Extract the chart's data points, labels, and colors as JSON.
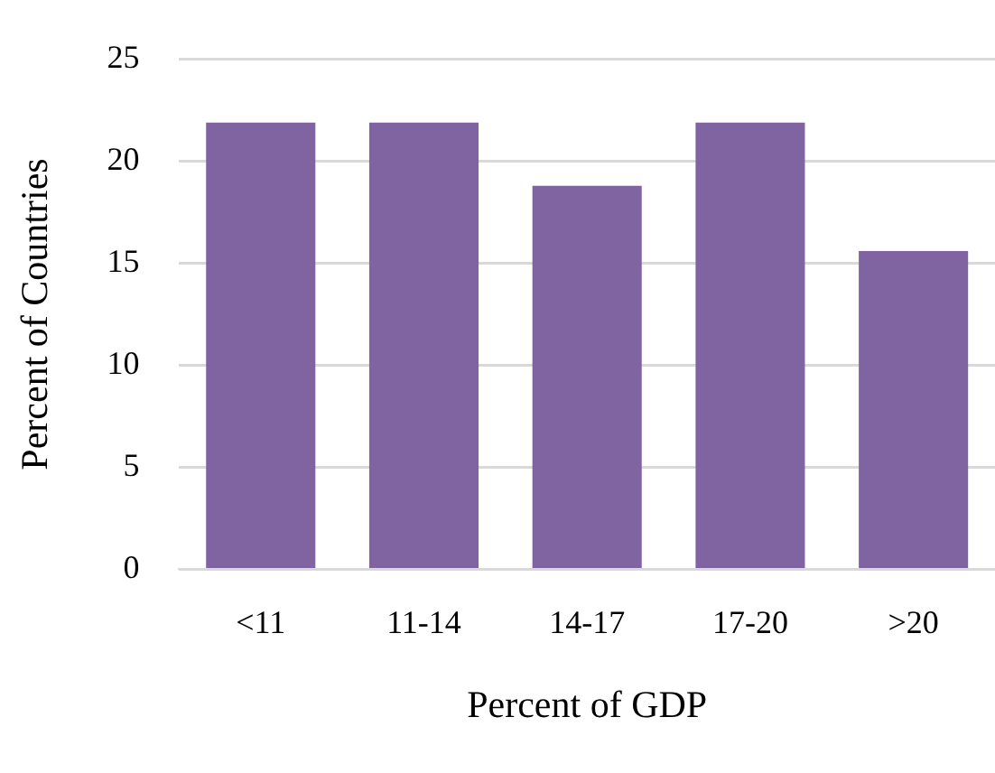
{
  "chart_data": {
    "type": "bar",
    "xlabel": "Percent of GDP",
    "ylabel": "Percent of Countries",
    "categories": [
      "<11",
      "11-14",
      "14-17",
      "17-20",
      ">20"
    ],
    "values": [
      21.9,
      21.9,
      18.8,
      21.9,
      15.6
    ],
    "color": "#8064a2",
    "ylim": [
      0,
      25
    ],
    "yticks": [
      0,
      5,
      10,
      15,
      20,
      25
    ],
    "grid": "y",
    "legend": false
  }
}
